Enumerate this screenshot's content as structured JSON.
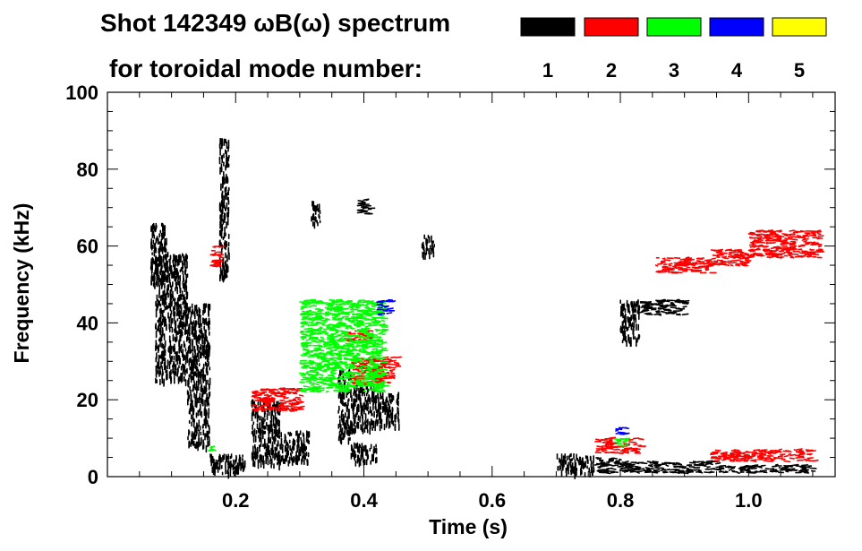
{
  "chart_data": {
    "type": "scatter",
    "title_line1": "Shot 142349 ωB(ω) spectrum",
    "title_line2": "for toroidal mode number:",
    "xlabel": "Time (s)",
    "ylabel": "Frequency (kHz)",
    "xlim": [
      0.0,
      1.135
    ],
    "ylim": [
      0,
      100
    ],
    "x_ticks": [
      "0.2",
      "0.4",
      "0.6",
      "0.8",
      "1.0"
    ],
    "y_ticks": [
      "0",
      "20",
      "40",
      "60",
      "80",
      "100"
    ],
    "legend": [
      {
        "label": "1",
        "color": "#000000"
      },
      {
        "label": "2",
        "color": "#ff0000"
      },
      {
        "label": "3",
        "color": "#00ff00"
      },
      {
        "label": "4",
        "color": "#0000ff"
      },
      {
        "label": "5",
        "color": "#ffff00"
      }
    ],
    "series": [
      {
        "name": "1",
        "color": "#000000",
        "regions": [
          {
            "t": [
              0.075,
              0.125
            ],
            "f": [
              25,
              58
            ]
          },
          {
            "t": [
              0.125,
              0.16
            ],
            "f": [
              8,
              45
            ]
          },
          {
            "t": [
              0.068,
              0.095
            ],
            "f": [
              50,
              66
            ]
          },
          {
            "t": [
              0.16,
              0.2
            ],
            "f": [
              1,
              6
            ]
          },
          {
            "t": [
              0.175,
              0.19
            ],
            "f": [
              52,
              88
            ]
          },
          {
            "t": [
              0.2,
              0.215
            ],
            "f": [
              1,
              6
            ]
          },
          {
            "t": [
              0.225,
              0.27
            ],
            "f": [
              3,
              20
            ]
          },
          {
            "t": [
              0.27,
              0.315
            ],
            "f": [
              4,
              12
            ]
          },
          {
            "t": [
              0.318,
              0.332
            ],
            "f": [
              66,
              72
            ]
          },
          {
            "t": [
              0.36,
              0.38
            ],
            "f": [
              10,
              28
            ]
          },
          {
            "t": [
              0.38,
              0.42
            ],
            "f": [
              12,
              24
            ]
          },
          {
            "t": [
              0.42,
              0.455
            ],
            "f": [
              13,
              22
            ]
          },
          {
            "t": [
              0.38,
              0.42
            ],
            "f": [
              4,
              9
            ]
          },
          {
            "t": [
              0.39,
              0.41
            ],
            "f": [
              68,
              72
            ]
          },
          {
            "t": [
              0.49,
              0.51
            ],
            "f": [
              58,
              63
            ]
          },
          {
            "t": [
              0.7,
              0.76
            ],
            "f": [
              1,
              6
            ]
          },
          {
            "t": [
              0.76,
              0.8
            ],
            "f": [
              1,
              5
            ]
          },
          {
            "t": [
              0.8,
              0.83
            ],
            "f": [
              35,
              46
            ]
          },
          {
            "t": [
              0.8,
              0.88
            ],
            "f": [
              1,
              4
            ]
          },
          {
            "t": [
              0.88,
              0.95
            ],
            "f": [
              1,
              4
            ]
          },
          {
            "t": [
              0.95,
              1.1
            ],
            "f": [
              1,
              3
            ]
          },
          {
            "t": [
              0.83,
              0.9
            ],
            "f": [
              42,
              46
            ]
          }
        ]
      },
      {
        "name": "2",
        "color": "#ff0000",
        "regions": [
          {
            "t": [
              0.855,
              0.94
            ],
            "f": [
              53,
              57
            ]
          },
          {
            "t": [
              0.94,
              1.0
            ],
            "f": [
              55,
              59
            ]
          },
          {
            "t": [
              1.0,
              1.11
            ],
            "f": [
              57,
              64
            ]
          },
          {
            "t": [
              0.225,
              0.3
            ],
            "f": [
              17,
              23
            ]
          },
          {
            "t": [
              0.37,
              0.41
            ],
            "f": [
              35,
              38
            ]
          },
          {
            "t": [
              0.38,
              0.45
            ],
            "f": [
              24,
              31
            ]
          },
          {
            "t": [
              0.76,
              0.83
            ],
            "f": [
              6,
              10
            ]
          },
          {
            "t": [
              0.94,
              1.1
            ],
            "f": [
              4,
              7
            ]
          },
          {
            "t": [
              0.16,
              0.175
            ],
            "f": [
              54,
              60
            ]
          }
        ]
      },
      {
        "name": "3",
        "color": "#00ff00",
        "regions": [
          {
            "t": [
              0.3,
              0.43
            ],
            "f": [
              22,
              46
            ]
          },
          {
            "t": [
              0.79,
              0.81
            ],
            "f": [
              8,
              10
            ]
          },
          {
            "t": [
              0.155,
              0.165
            ],
            "f": [
              6,
              8
            ]
          }
        ]
      },
      {
        "name": "4",
        "color": "#0000ff",
        "regions": [
          {
            "t": [
              0.79,
              0.81
            ],
            "f": [
              11,
              13
            ]
          },
          {
            "t": [
              0.42,
              0.44
            ],
            "f": [
              42,
              46
            ]
          }
        ]
      }
    ]
  }
}
